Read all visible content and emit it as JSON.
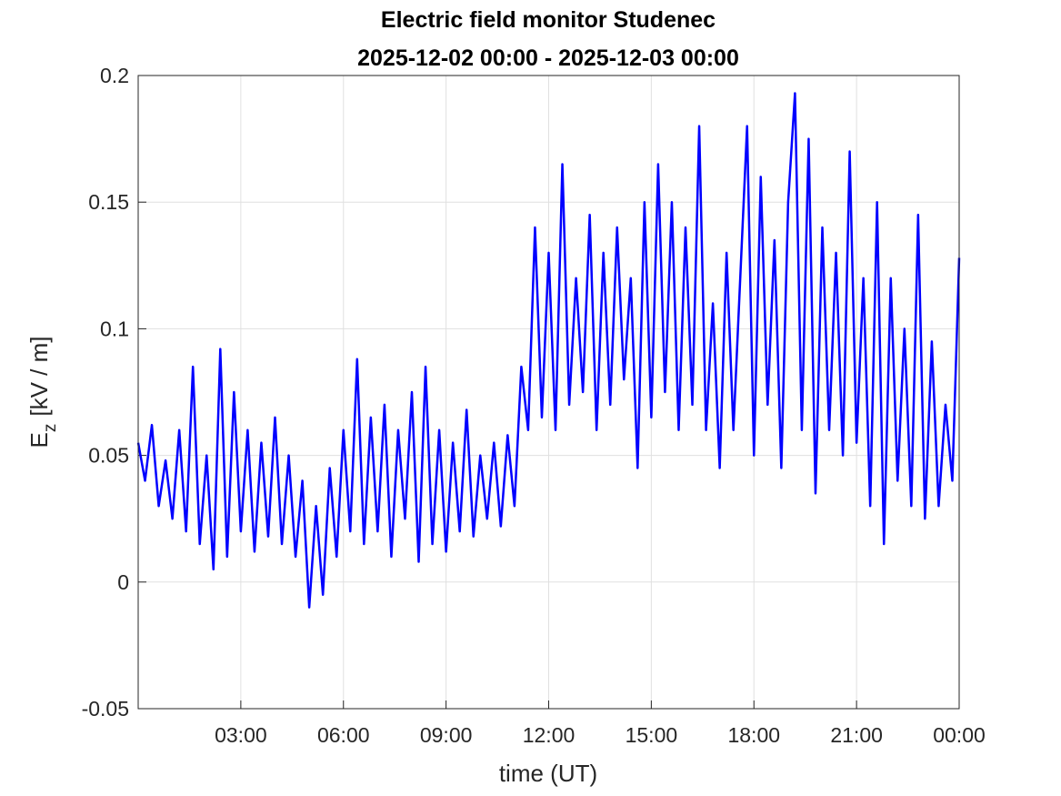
{
  "chart_data": {
    "type": "line",
    "title": "Electric field monitor Studenec",
    "subtitle": "2025-12-02 00:00 - 2025-12-03 00:00",
    "xlabel": "time (UT)",
    "ylabel": {
      "main": "E",
      "sub": "z",
      "rest": "[kV / m]"
    },
    "color": "#0000ff",
    "grid": true,
    "xlim": [
      0,
      24
    ],
    "xticks": [
      {
        "value": 3,
        "label": "03:00"
      },
      {
        "value": 6,
        "label": "06:00"
      },
      {
        "value": 9,
        "label": "09:00"
      },
      {
        "value": 12,
        "label": "12:00"
      },
      {
        "value": 15,
        "label": "15:00"
      },
      {
        "value": 18,
        "label": "18:00"
      },
      {
        "value": 21,
        "label": "21:00"
      },
      {
        "value": 24,
        "label": "00:00"
      }
    ],
    "ylim": [
      -0.05,
      0.2
    ],
    "yticks": [
      -0.05,
      0,
      0.05,
      0.1,
      0.15,
      0.2
    ],
    "x": [
      0,
      0.2,
      0.4,
      0.6,
      0.8,
      1,
      1.2,
      1.4,
      1.6,
      1.8,
      2,
      2.2,
      2.4,
      2.6,
      2.8,
      3,
      3.2,
      3.4,
      3.6,
      3.8,
      4,
      4.2,
      4.4,
      4.6,
      4.8,
      5,
      5.2,
      5.4,
      5.6,
      5.8,
      6,
      6.2,
      6.4,
      6.6,
      6.8,
      7,
      7.2,
      7.4,
      7.6,
      7.8,
      8,
      8.2,
      8.4,
      8.6,
      8.8,
      9,
      9.2,
      9.4,
      9.6,
      9.8,
      10,
      10.2,
      10.4,
      10.6,
      10.8,
      11,
      11.2,
      11.4,
      11.6,
      11.8,
      12,
      12.2,
      12.4,
      12.6,
      12.8,
      13,
      13.2,
      13.4,
      13.6,
      13.8,
      14,
      14.2,
      14.4,
      14.6,
      14.8,
      15,
      15.2,
      15.4,
      15.6,
      15.8,
      16,
      16.2,
      16.4,
      16.6,
      16.8,
      17,
      17.2,
      17.4,
      17.6,
      17.8,
      18,
      18.2,
      18.4,
      18.6,
      18.8,
      19,
      19.2,
      19.4,
      19.6,
      19.8,
      20,
      20.2,
      20.4,
      20.6,
      20.8,
      21,
      21.2,
      21.4,
      21.6,
      21.8,
      22,
      22.2,
      22.4,
      22.6,
      22.8,
      23,
      23.2,
      23.4,
      23.6,
      23.8,
      24
    ],
    "values": [
      0.055,
      0.04,
      0.062,
      0.03,
      0.048,
      0.025,
      0.06,
      0.02,
      0.085,
      0.015,
      0.05,
      0.005,
      0.092,
      0.01,
      0.075,
      0.02,
      0.06,
      0.012,
      0.055,
      0.018,
      0.065,
      0.015,
      0.05,
      0.01,
      0.04,
      -0.01,
      0.03,
      -0.005,
      0.045,
      0.01,
      0.06,
      0.02,
      0.088,
      0.015,
      0.065,
      0.02,
      0.07,
      0.01,
      0.06,
      0.025,
      0.075,
      0.008,
      0.085,
      0.015,
      0.06,
      0.012,
      0.055,
      0.02,
      0.068,
      0.018,
      0.05,
      0.025,
      0.055,
      0.022,
      0.058,
      0.03,
      0.085,
      0.06,
      0.14,
      0.065,
      0.13,
      0.06,
      0.165,
      0.07,
      0.12,
      0.075,
      0.145,
      0.06,
      0.13,
      0.07,
      0.14,
      0.08,
      0.12,
      0.045,
      0.15,
      0.065,
      0.165,
      0.075,
      0.15,
      0.06,
      0.14,
      0.07,
      0.18,
      0.06,
      0.11,
      0.045,
      0.13,
      0.06,
      0.12,
      0.18,
      0.05,
      0.16,
      0.07,
      0.135,
      0.045,
      0.15,
      0.193,
      0.06,
      0.175,
      0.035,
      0.14,
      0.06,
      0.13,
      0.05,
      0.17,
      0.055,
      0.12,
      0.03,
      0.15,
      0.015,
      0.12,
      0.04,
      0.1,
      0.03,
      0.145,
      0.025,
      0.095,
      0.03,
      0.07,
      0.04,
      0.128
    ]
  }
}
